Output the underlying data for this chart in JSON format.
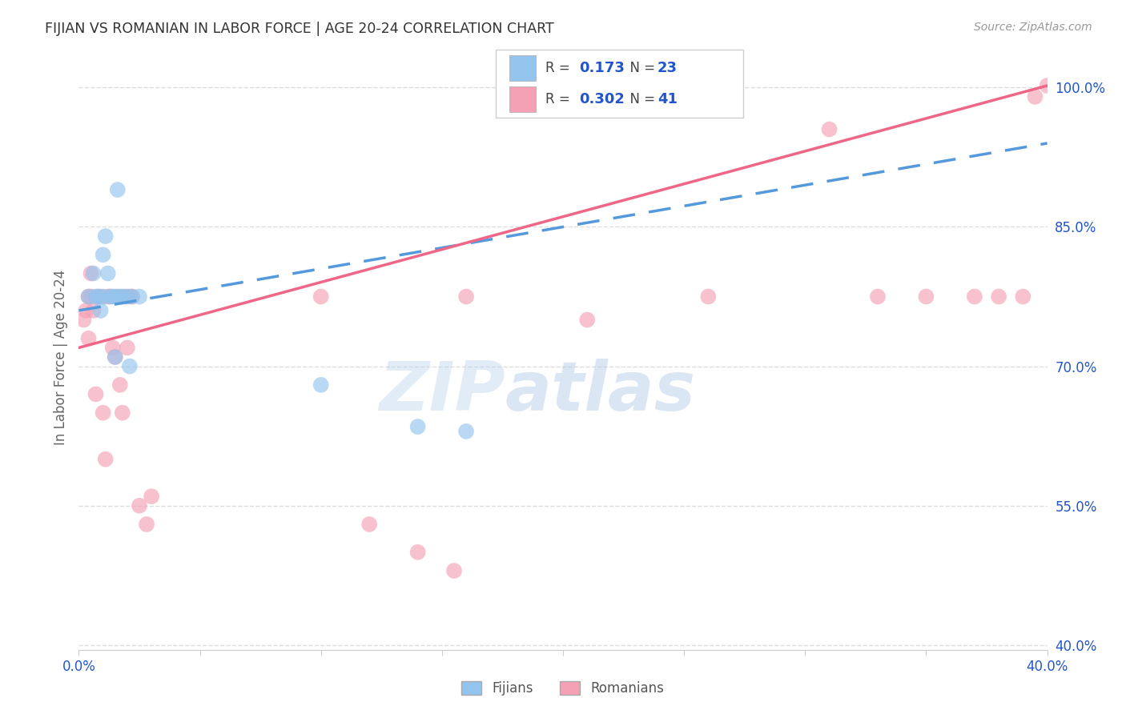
{
  "title": "FIJIAN VS ROMANIAN IN LABOR FORCE | AGE 20-24 CORRELATION CHART",
  "source": "Source: ZipAtlas.com",
  "ylabel": "In Labor Force | Age 20-24",
  "legend_label1": "Fijians",
  "legend_label2": "Romanians",
  "R1": "0.173",
  "N1": "23",
  "R2": "0.302",
  "N2": "41",
  "xlim": [
    0.0,
    0.4
  ],
  "ylim": [
    0.395,
    1.025
  ],
  "yticks": [
    0.4,
    0.55,
    0.7,
    0.85,
    1.0
  ],
  "xticks_pos": [
    0.0,
    0.4
  ],
  "xtick_labels": [
    "0.0%",
    "40.0%"
  ],
  "color_fijian": "#93C4EE",
  "color_romanian": "#F4A0B5",
  "fijian_x": [
    0.004,
    0.006,
    0.007,
    0.008,
    0.009,
    0.01,
    0.01,
    0.011,
    0.012,
    0.013,
    0.014,
    0.015,
    0.015,
    0.016,
    0.017,
    0.018,
    0.02,
    0.021,
    0.022,
    0.025,
    0.1,
    0.14,
    0.16
  ],
  "fijian_y": [
    0.775,
    0.8,
    0.775,
    0.775,
    0.76,
    0.82,
    0.775,
    0.84,
    0.8,
    0.775,
    0.775,
    0.775,
    0.71,
    0.89,
    0.775,
    0.775,
    0.775,
    0.7,
    0.775,
    0.775,
    0.68,
    0.635,
    0.63
  ],
  "romanian_x": [
    0.002,
    0.003,
    0.004,
    0.004,
    0.005,
    0.005,
    0.006,
    0.007,
    0.008,
    0.009,
    0.01,
    0.011,
    0.012,
    0.013,
    0.014,
    0.015,
    0.016,
    0.017,
    0.018,
    0.019,
    0.02,
    0.021,
    0.022,
    0.025,
    0.028,
    0.03,
    0.1,
    0.12,
    0.14,
    0.155,
    0.16,
    0.21,
    0.26,
    0.31,
    0.33,
    0.35,
    0.37,
    0.38,
    0.39,
    0.395,
    0.4
  ],
  "romanian_y": [
    0.75,
    0.76,
    0.775,
    0.73,
    0.775,
    0.8,
    0.76,
    0.67,
    0.775,
    0.775,
    0.65,
    0.6,
    0.775,
    0.775,
    0.72,
    0.71,
    0.775,
    0.68,
    0.65,
    0.775,
    0.72,
    0.775,
    0.775,
    0.55,
    0.53,
    0.56,
    0.775,
    0.53,
    0.5,
    0.48,
    0.775,
    0.75,
    0.775,
    0.955,
    0.775,
    0.775,
    0.775,
    0.775,
    0.775,
    0.99,
    1.002
  ],
  "line_fijian_x0": 0.0,
  "line_fijian_y0": 0.76,
  "line_fijian_x1": 0.4,
  "line_fijian_y1": 0.94,
  "line_romanian_x0": 0.0,
  "line_romanian_y0": 0.72,
  "line_romanian_x1": 0.4,
  "line_romanian_y1": 1.002,
  "watermark_zip": "ZIP",
  "watermark_atlas": "atlas",
  "background_color": "#FFFFFF",
  "grid_color": "#DDDDDD",
  "title_color": "#333333",
  "axis_label_color": "#666666",
  "tick_color": "#2255CC",
  "source_color": "#999999",
  "line_color_fijian": "#5599DD",
  "line_color_romanian": "#EE6688"
}
